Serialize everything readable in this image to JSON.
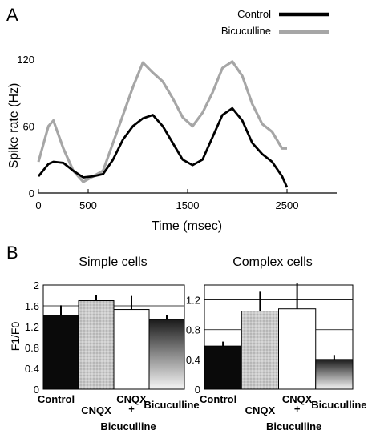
{
  "panels": {
    "a_label": "A",
    "b_label": "B"
  },
  "colors": {
    "control": "#000000",
    "bicuculline": "#a6a6a6",
    "cnqx_fill": "#c4c4c4",
    "combo_fill": "#ffffff"
  },
  "chart_data": [
    {
      "type": "line",
      "title": "",
      "xlabel": "Time (msec)",
      "ylabel": "Spike rate (Hz)",
      "xlim": [
        0,
        3000
      ],
      "ylim": [
        0,
        120
      ],
      "xticks": [
        "0",
        "500",
        "1500",
        "2500"
      ],
      "xtick_values": [
        0,
        500,
        1500,
        2500
      ],
      "yticks": [
        "0",
        "60",
        "120"
      ],
      "ytick_values": [
        0,
        60,
        120
      ],
      "legend_position": "top-right",
      "series": [
        {
          "name": "Control",
          "x": [
            0,
            100,
            150,
            250,
            350,
            450,
            550,
            650,
            750,
            850,
            950,
            1050,
            1150,
            1250,
            1350,
            1450,
            1550,
            1650,
            1750,
            1850,
            1950,
            2050,
            2150,
            2250,
            2350,
            2450,
            2500
          ],
          "y": [
            15,
            26,
            28,
            27,
            20,
            14,
            15,
            17,
            30,
            48,
            60,
            67,
            70,
            60,
            45,
            30,
            25,
            30,
            50,
            70,
            76,
            65,
            45,
            35,
            28,
            15,
            5
          ]
        },
        {
          "name": "Bicuculline",
          "x": [
            0,
            100,
            150,
            250,
            350,
            450,
            550,
            650,
            750,
            850,
            950,
            1050,
            1150,
            1250,
            1350,
            1450,
            1550,
            1650,
            1750,
            1850,
            1950,
            2050,
            2150,
            2250,
            2350,
            2450,
            2500
          ],
          "y": [
            28,
            60,
            65,
            40,
            20,
            10,
            15,
            20,
            45,
            70,
            95,
            117,
            108,
            100,
            85,
            68,
            60,
            72,
            90,
            112,
            118,
            105,
            80,
            62,
            55,
            40,
            40
          ]
        }
      ]
    },
    {
      "type": "bar",
      "title": "Simple cells",
      "ylabel": "F1/F0",
      "ylim": [
        0,
        2
      ],
      "yticks": [
        "0",
        "0.4",
        "0.8",
        "1.2",
        "1.6",
        "2"
      ],
      "ytick_values": [
        0,
        0.4,
        0.8,
        1.2,
        1.6,
        2
      ],
      "categories": [
        "Control",
        "CNQX",
        "CNQX",
        "Bicuculline"
      ],
      "category_notes": [
        "",
        "",
        "+ Bicuculline",
        ""
      ],
      "values": [
        1.42,
        1.7,
        1.53,
        1.34
      ],
      "errors": [
        0.19,
        0.1,
        0.26,
        0.09
      ]
    },
    {
      "type": "bar",
      "title": "Complex cells",
      "ylabel": "",
      "ylim": [
        0,
        1.4
      ],
      "yticks": [
        "0",
        "0.4",
        "0.8",
        "1.2"
      ],
      "ytick_values": [
        0,
        0.4,
        0.8,
        1.2
      ],
      "categories": [
        "Control",
        "CNQX",
        "CNQX",
        "Bicuculline"
      ],
      "category_notes": [
        "",
        "",
        "+ Bicuculline",
        ""
      ],
      "values": [
        0.58,
        1.05,
        1.08,
        0.4
      ],
      "errors": [
        0.06,
        0.26,
        0.35,
        0.06
      ]
    }
  ]
}
